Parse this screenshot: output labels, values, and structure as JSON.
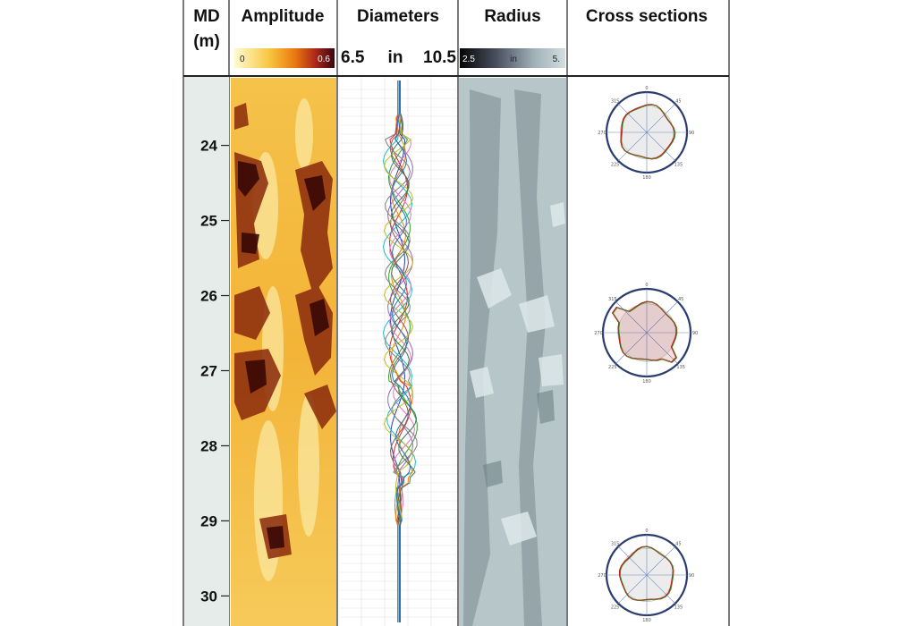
{
  "headers": {
    "md_line1": "MD",
    "md_line2": "(m)",
    "amplitude": "Amplitude",
    "diameters": "Diameters",
    "radius": "Radius",
    "cross_sections": "Cross sections"
  },
  "amplitude_scale": {
    "min_label": "0",
    "max_label": "0.6"
  },
  "diameter_scale": {
    "min_label": "6.5",
    "unit_label": "in",
    "max_label": "10.5",
    "min": 6.5,
    "max": 10.5
  },
  "radius_scale": {
    "min_label": "2.5",
    "unit_label": "in",
    "max_label": "5."
  },
  "depth_axis": {
    "ticks": [
      "24",
      "25",
      "26",
      "27",
      "28",
      "29",
      "30"
    ],
    "range": [
      23.1,
      30.4
    ]
  },
  "cross_sections": [
    {
      "azimuths": [
        "315",
        "45",
        "90",
        "135",
        "180",
        "225",
        "270",
        "0"
      ]
    },
    {
      "azimuths": [
        "315",
        "45",
        "90",
        "135",
        "180",
        "225",
        "270",
        "0"
      ]
    },
    {
      "azimuths": [
        "315",
        "45",
        "90",
        "135",
        "180",
        "225",
        "270",
        "0"
      ]
    }
  ],
  "colors": {
    "amplitude_low": "#fffbd0",
    "amplitude_mid": "#f09010",
    "amplitude_high": "#4a0a08",
    "radius_low": "#0a0a0a",
    "radius_high": "#c8d6d8",
    "cross_section_circle": "#2a3d6e",
    "cross_section_curve": "#c02020"
  }
}
